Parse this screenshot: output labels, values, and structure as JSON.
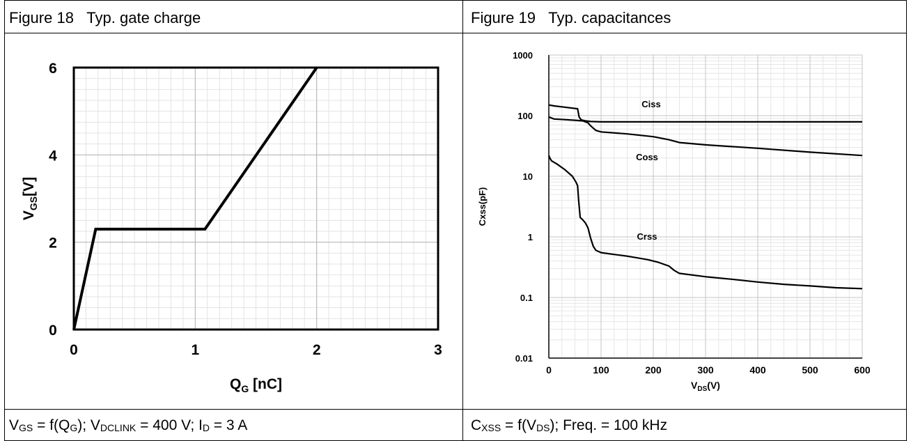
{
  "header": {
    "left_figure": "Figure 18",
    "left_title": "Typ. gate charge",
    "right_figure": "Figure 19",
    "right_title": "Typ. capacitances"
  },
  "footer": {
    "left": {
      "vgs_v": "V",
      "vgs_sub": "GS",
      "f_open": " = f(Q",
      "f_sub": "G",
      "rest": "); V",
      "dclink_sub": "DCLINK",
      "rest2": " = 400 V; I",
      "id_sub": "D",
      "rest3": " = 3 A"
    },
    "right": {
      "c": "C",
      "c_sub": "XSS",
      "f_open": " = f(V",
      "f_sub": "DS",
      "rest": ");  Freq. = 100 kHz"
    }
  },
  "chart_data": [
    {
      "type": "line",
      "ylabel_main": "V",
      "ylabel_sub": "GS",
      "ylabel_tail": "[V]",
      "xlabel_main": "Q",
      "xlabel_sub": "G",
      "xlabel_tail": " [nC]",
      "xlim": [
        0,
        3
      ],
      "ylim": [
        0,
        6
      ],
      "xticks": [
        0,
        1,
        2,
        3
      ],
      "yticks": [
        0,
        2,
        4,
        6
      ],
      "grid": true,
      "series": [
        {
          "x": [
            0,
            0.18,
            1.08,
            2.0
          ],
          "y": [
            0,
            2.3,
            2.3,
            6.0
          ]
        }
      ]
    },
    {
      "type": "line",
      "ylabel": "Cxss(pF)",
      "xlabel_main": "V",
      "xlabel_sub": "DS",
      "xlabel_tail": "(V)",
      "xlim": [
        0,
        600
      ],
      "ylim": [
        0.01,
        1000
      ],
      "yscale": "log",
      "xticks": [
        0,
        100,
        200,
        300,
        400,
        500,
        600
      ],
      "yticks": [
        0.01,
        0.1,
        1,
        10,
        100,
        1000
      ],
      "ytick_labels": [
        "0.01",
        "0.1",
        "1",
        "10",
        "100",
        "1000"
      ],
      "grid": true,
      "series": [
        {
          "name": "Ciss",
          "x": [
            0,
            10,
            30,
            55,
            58,
            62,
            70,
            80,
            100,
            200,
            300,
            400,
            500,
            600
          ],
          "y": [
            150,
            145,
            138,
            130,
            95,
            85,
            82,
            80,
            79,
            79,
            79,
            79,
            79,
            79
          ]
        },
        {
          "name": "Coss",
          "x": [
            0,
            10,
            30,
            50,
            65,
            75,
            80,
            90,
            100,
            150,
            200,
            230,
            250,
            300,
            400,
            500,
            600
          ],
          "y": [
            95,
            88,
            86,
            84,
            82,
            76,
            68,
            57,
            54,
            50,
            45,
            40,
            36,
            33,
            29,
            25,
            22
          ]
        },
        {
          "name": "Crss",
          "x": [
            0,
            2,
            5,
            15,
            30,
            45,
            52,
            55,
            57,
            60,
            65,
            70,
            75,
            80,
            85,
            90,
            100,
            120,
            150,
            170,
            190,
            210,
            230,
            240,
            250,
            300,
            350,
            400,
            450,
            500,
            550,
            600
          ],
          "y": [
            22,
            20,
            18,
            16,
            13,
            10,
            8,
            7,
            4,
            2.1,
            1.9,
            1.7,
            1.4,
            0.95,
            0.7,
            0.6,
            0.55,
            0.52,
            0.48,
            0.45,
            0.42,
            0.38,
            0.33,
            0.28,
            0.25,
            0.22,
            0.2,
            0.18,
            0.165,
            0.155,
            0.145,
            0.14
          ]
        }
      ],
      "annotations": [
        "Ciss",
        "Coss",
        "Crss"
      ]
    }
  ]
}
